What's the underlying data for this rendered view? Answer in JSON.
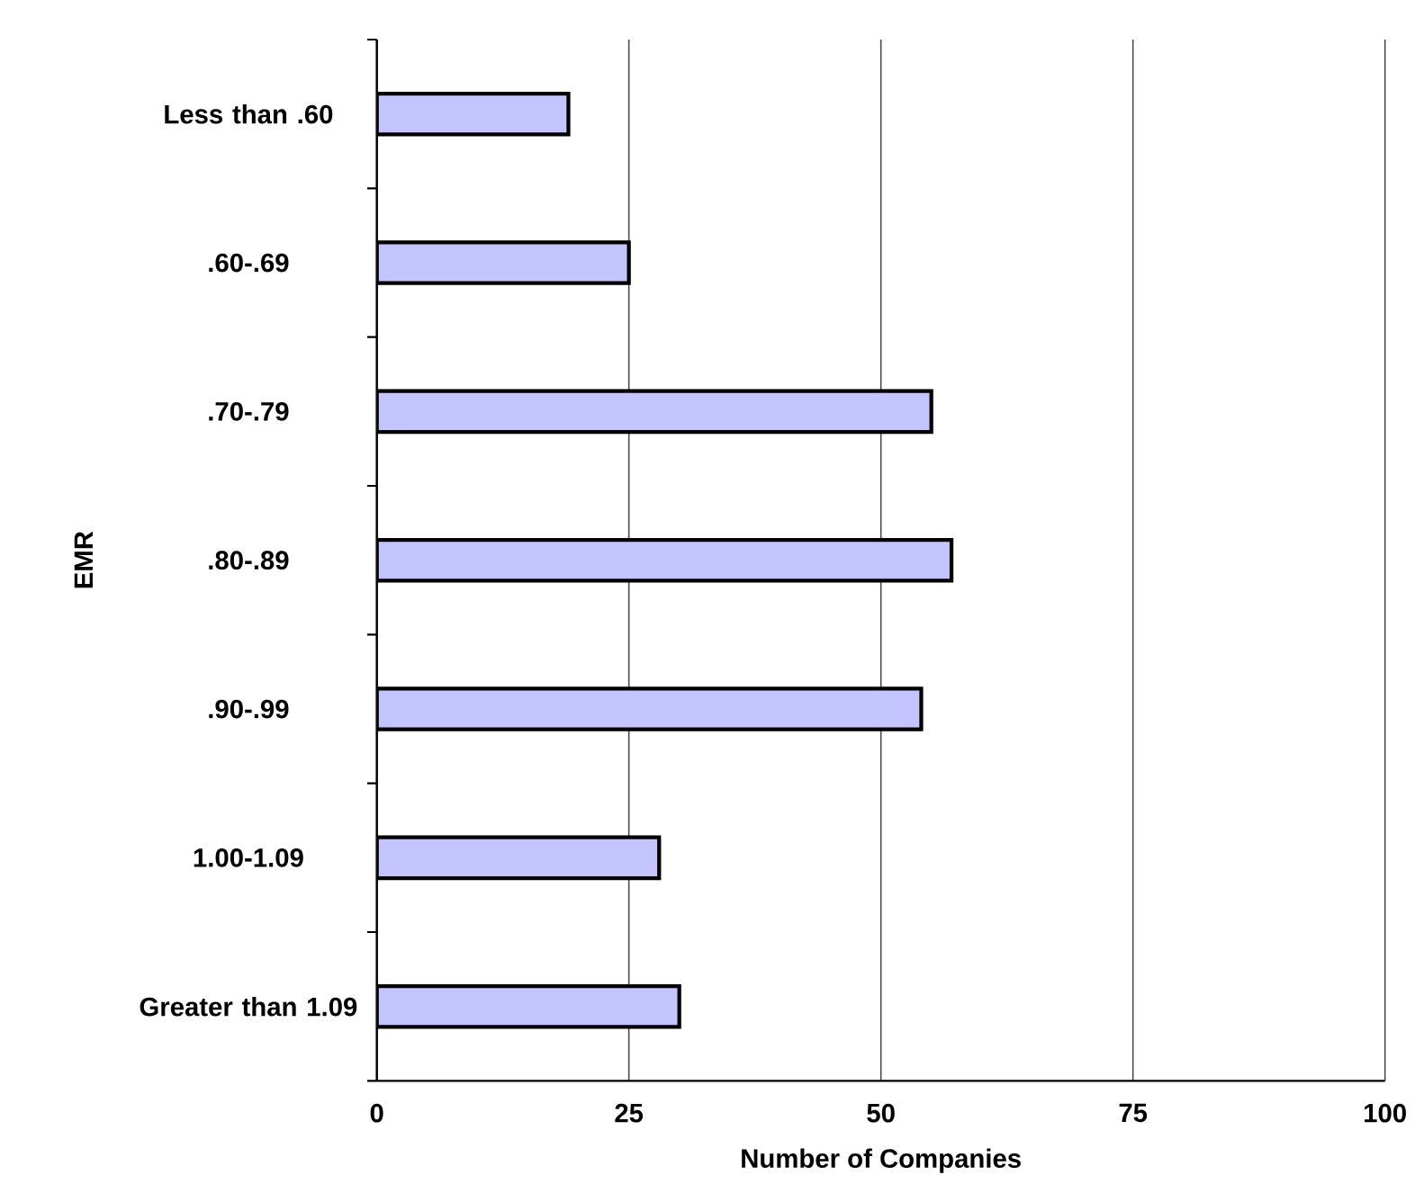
{
  "chart_data": {
    "type": "bar",
    "orientation": "horizontal",
    "categories": [
      "Less than .60",
      ".60-.69",
      ".70-.79",
      ".80-.89",
      ".90-.99",
      "1.00-1.09",
      "Greater than 1.09"
    ],
    "values": [
      19,
      25,
      55,
      57,
      54,
      28,
      30
    ],
    "color": "#c4c4ff",
    "xlim": [
      0,
      100
    ],
    "xticks": [
      0,
      25,
      50,
      75,
      100
    ],
    "xlabel": "Number of Companies",
    "ylabel": "EMR",
    "grid": "x"
  }
}
